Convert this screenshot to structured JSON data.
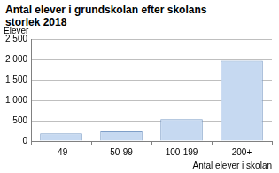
{
  "chart_data": {
    "type": "bar",
    "title": "Antal elever i grundskolan efter skolans storlek 2018",
    "y_label": "Elever",
    "x_label": "Antal elever i skolan",
    "categories": [
      "-49",
      "50-99",
      "100-199",
      "200+"
    ],
    "values": [
      190,
      240,
      540,
      1970
    ],
    "color": "#c6d9f1",
    "ylim": [
      0,
      2500
    ],
    "yticks": [
      0,
      500,
      {
        "value": 1000,
        "label": "1 000"
      },
      {
        "value": 1500,
        "label": "1 500"
      },
      {
        "value": 2000,
        "label": "2 000"
      },
      {
        "value": 2500,
        "label": "2 500"
      }
    ],
    "grid": true
  }
}
